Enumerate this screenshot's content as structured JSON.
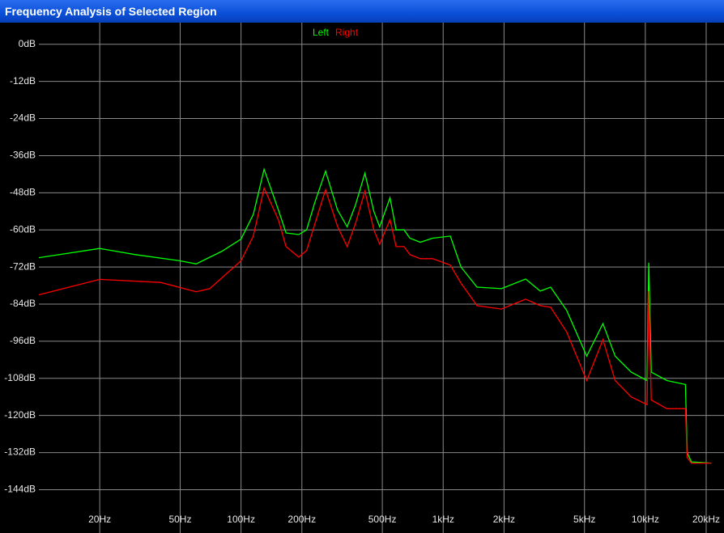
{
  "chart_data": {
    "type": "line",
    "title": "Frequency Analysis of Selected Region",
    "xscale": "log",
    "grid": true,
    "legend": "top",
    "xlim": [
      10,
      24500
    ],
    "ylim": [
      -158,
      7
    ],
    "xticks": [
      {
        "value": 20,
        "label": "20Hz"
      },
      {
        "value": 50,
        "label": "50Hz"
      },
      {
        "value": 100,
        "label": "100Hz"
      },
      {
        "value": 200,
        "label": "200Hz"
      },
      {
        "value": 500,
        "label": "500Hz"
      },
      {
        "value": 1000,
        "label": "1kHz"
      },
      {
        "value": 2000,
        "label": "2kHz"
      },
      {
        "value": 5000,
        "label": "5kHz"
      },
      {
        "value": 10000,
        "label": "10kHz"
      },
      {
        "value": 20000,
        "label": "20kHz"
      }
    ],
    "yticks": [
      {
        "value": 0,
        "label": "0dB"
      },
      {
        "value": -12,
        "label": "-12dB"
      },
      {
        "value": -24,
        "label": "-24dB"
      },
      {
        "value": -36,
        "label": "-36dB"
      },
      {
        "value": -48,
        "label": "-48dB"
      },
      {
        "value": -60,
        "label": "-60dB"
      },
      {
        "value": -72,
        "label": "-72dB"
      },
      {
        "value": -84,
        "label": "-84dB"
      },
      {
        "value": -96,
        "label": "-96dB"
      },
      {
        "value": -108,
        "label": "-108dB"
      },
      {
        "value": -120,
        "label": "-120dB"
      },
      {
        "value": -132,
        "label": "-132dB"
      },
      {
        "value": -144,
        "label": "-144dB"
      }
    ],
    "series": [
      {
        "name": "Left",
        "color": "#00ff00",
        "x": [
          10,
          20,
          30,
          50,
          60,
          80,
          100,
          115,
          130,
          153,
          167,
          193,
          211,
          232,
          262,
          300,
          335,
          368,
          410,
          454,
          485,
          546,
          585,
          640,
          685,
          771,
          886,
          1085,
          1225,
          1470,
          1940,
          2560,
          3020,
          3400,
          4080,
          5130,
          6170,
          7090,
          8510,
          10200,
          10400,
          10700,
          12800,
          15800,
          16100,
          16900,
          21200
        ],
        "values": [
          -69,
          -66,
          -68,
          -70,
          -71,
          -67,
          -63,
          -55,
          -40.4,
          -53.5,
          -61,
          -61.5,
          -60,
          -51,
          -41,
          -53.5,
          -59,
          -52,
          -41.7,
          -54,
          -59,
          -49.6,
          -60,
          -60,
          -62.7,
          -64,
          -62.7,
          -62,
          -72,
          -78.5,
          -79,
          -75.9,
          -79.8,
          -78.5,
          -86,
          -100.8,
          -90.3,
          -100.8,
          -106,
          -108.7,
          -70.6,
          -106,
          -108.7,
          -110,
          -132,
          -135,
          -135.4
        ]
      },
      {
        "name": "Right",
        "color": "#ff0000",
        "x": [
          10,
          20,
          40,
          60,
          70,
          100,
          115,
          130,
          153,
          167,
          193,
          211,
          232,
          262,
          300,
          335,
          368,
          410,
          454,
          485,
          546,
          585,
          640,
          685,
          771,
          886,
          1085,
          1225,
          1470,
          1940,
          2560,
          3020,
          3400,
          4080,
          5130,
          6170,
          7090,
          8510,
          10200,
          10400,
          10700,
          12800,
          15800,
          16100,
          16900,
          21200
        ],
        "values": [
          -81,
          -76,
          -77,
          -80,
          -79,
          -70,
          -62,
          -46.5,
          -56.7,
          -65.4,
          -68.8,
          -66.7,
          -58,
          -47,
          -58.8,
          -65.4,
          -58,
          -47.5,
          -60,
          -64.6,
          -56.7,
          -65.4,
          -65.4,
          -68,
          -69.3,
          -69.3,
          -71.4,
          -77.2,
          -84.5,
          -85.6,
          -82.4,
          -84.5,
          -85,
          -93,
          -108.7,
          -95.5,
          -108.7,
          -114,
          -116.5,
          -79.8,
          -115,
          -117.8,
          -117.8,
          -133.6,
          -135.4,
          -135.4
        ]
      }
    ]
  }
}
